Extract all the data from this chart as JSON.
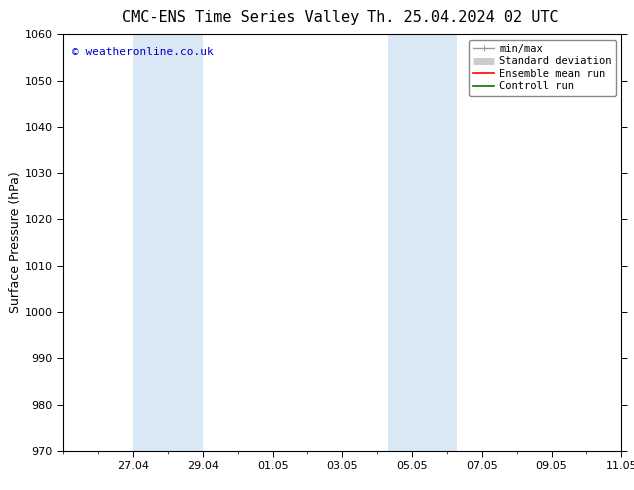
{
  "title_left": "CMC-ENS Time Series Valley",
  "title_right": "Th. 25.04.2024 02 UTC",
  "ylabel": "Surface Pressure (hPa)",
  "ylim": [
    970,
    1060
  ],
  "yticks": [
    970,
    980,
    990,
    1000,
    1010,
    1020,
    1030,
    1040,
    1050,
    1060
  ],
  "xlim": [
    0,
    16
  ],
  "xtick_labels": [
    "27.04",
    "29.04",
    "01.05",
    "03.05",
    "05.05",
    "07.05",
    "09.05",
    "11.05"
  ],
  "xtick_positions": [
    2,
    4,
    6,
    8,
    10,
    12,
    14,
    16
  ],
  "shaded_bands": [
    {
      "x_start": 2,
      "x_end": 4,
      "color": "#dae8f5"
    },
    {
      "x_start": 9.3,
      "x_end": 11.3,
      "color": "#dae8f5"
    }
  ],
  "watermark_text": "© weatheronline.co.uk",
  "watermark_color": "#0000cc",
  "background_color": "#ffffff",
  "plot_bg_color": "#ffffff",
  "legend_entries": [
    {
      "label": "min/max",
      "color": "#999999",
      "lw": 1.0
    },
    {
      "label": "Standard deviation",
      "color": "#cccccc",
      "lw": 5
    },
    {
      "label": "Ensemble mean run",
      "color": "#ff0000",
      "lw": 1.2
    },
    {
      "label": "Controll run",
      "color": "#007700",
      "lw": 1.2
    }
  ],
  "title_fontsize": 11,
  "ylabel_fontsize": 9,
  "tick_fontsize": 8,
  "legend_fontsize": 7.5,
  "watermark_fontsize": 8
}
